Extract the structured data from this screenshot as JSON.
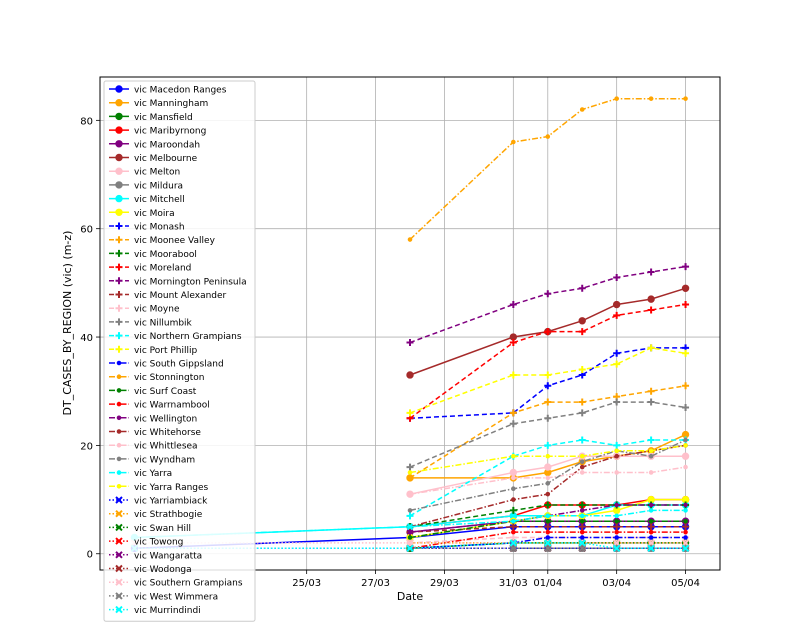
{
  "chart_data": {
    "type": "line",
    "title": "",
    "xlabel": "Date",
    "ylabel": "DT_CASES_BY_REGION (vic) (m-z)",
    "xlim": [
      "2020-03-19",
      "2020-04-06"
    ],
    "ylim": [
      -3,
      88
    ],
    "grid": true,
    "legend_position": "upper-left",
    "x_ticks": [
      {
        "date": "2020-03-25",
        "label": "25/03"
      },
      {
        "date": "2020-03-27",
        "label": "27/03"
      },
      {
        "date": "2020-03-29",
        "label": "29/03"
      },
      {
        "date": "2020-03-31",
        "label": "31/03"
      },
      {
        "date": "2020-04-01",
        "label": "01/04"
      },
      {
        "date": "2020-04-03",
        "label": "03/04"
      },
      {
        "date": "2020-04-05",
        "label": "05/04"
      }
    ],
    "y_ticks": [
      0,
      20,
      40,
      60,
      80
    ],
    "series": [
      {
        "name": "vic Macedon Ranges",
        "color": "#0000ff",
        "marker": "circle",
        "dash": "solid",
        "x": [
          "2020-03-20",
          "2020-03-28",
          "2020-03-31",
          "2020-04-01",
          "2020-04-02",
          "2020-04-03",
          "2020-04-04",
          "2020-04-05"
        ],
        "y": [
          1,
          3,
          5,
          5,
          5,
          5,
          5,
          5
        ]
      },
      {
        "name": "vic Manningham",
        "color": "#ffa500",
        "marker": "circle",
        "dash": "solid",
        "x": [
          "2020-03-28",
          "2020-03-31",
          "2020-04-01",
          "2020-04-02",
          "2020-04-03",
          "2020-04-04",
          "2020-04-05"
        ],
        "y": [
          14,
          14,
          15,
          17,
          18,
          19,
          22
        ]
      },
      {
        "name": "vic Mansfield",
        "color": "#008000",
        "marker": "circle",
        "dash": "solid",
        "x": [
          "2020-03-28",
          "2020-03-31",
          "2020-04-01",
          "2020-04-02",
          "2020-04-03",
          "2020-04-04",
          "2020-04-05"
        ],
        "y": [
          1,
          2,
          2,
          2,
          2,
          2,
          2
        ]
      },
      {
        "name": "vic Maribyrnong",
        "color": "#ff0000",
        "marker": "circle",
        "dash": "solid",
        "x": [
          "2020-03-28",
          "2020-03-31",
          "2020-04-01",
          "2020-04-02",
          "2020-04-03",
          "2020-04-04",
          "2020-04-05"
        ],
        "y": [
          5,
          7,
          9,
          9,
          9,
          10,
          10
        ]
      },
      {
        "name": "vic Maroondah",
        "color": "#800080",
        "marker": "circle",
        "dash": "solid",
        "x": [
          "2020-03-28",
          "2020-03-31",
          "2020-04-01",
          "2020-04-02",
          "2020-04-03",
          "2020-04-04",
          "2020-04-05"
        ],
        "y": [
          4,
          6,
          6,
          6,
          6,
          6,
          6
        ]
      },
      {
        "name": "vic Melbourne",
        "color": "#a52a2a",
        "marker": "circle",
        "dash": "solid",
        "x": [
          "2020-03-28",
          "2020-03-31",
          "2020-04-01",
          "2020-04-02",
          "2020-04-03",
          "2020-04-04",
          "2020-04-05"
        ],
        "y": [
          33,
          40,
          41,
          43,
          46,
          47,
          49
        ]
      },
      {
        "name": "vic Melton",
        "color": "#ffc0cb",
        "marker": "circle",
        "dash": "solid",
        "x": [
          "2020-03-28",
          "2020-03-31",
          "2020-04-01",
          "2020-04-02",
          "2020-04-03",
          "2020-04-04",
          "2020-04-05"
        ],
        "y": [
          11,
          15,
          16,
          18,
          18,
          18,
          18
        ]
      },
      {
        "name": "vic Mildura",
        "color": "#808080",
        "marker": "circle",
        "dash": "solid",
        "x": [
          "2020-03-31",
          "2020-04-01",
          "2020-04-02",
          "2020-04-03",
          "2020-04-04",
          "2020-04-05"
        ],
        "y": [
          1,
          1,
          1,
          1,
          1,
          1
        ]
      },
      {
        "name": "vic Mitchell",
        "color": "#00ffff",
        "marker": "circle",
        "dash": "solid",
        "x": [
          "2020-03-20",
          "2020-03-28",
          "2020-03-31",
          "2020-04-01",
          "2020-04-02",
          "2020-04-03",
          "2020-04-04",
          "2020-04-05"
        ],
        "y": [
          3,
          5,
          7,
          7,
          7,
          9,
          9,
          9
        ]
      },
      {
        "name": "vic Moira",
        "color": "#ffff00",
        "marker": "circle",
        "dash": "solid",
        "x": [
          "2020-03-28",
          "2020-03-31",
          "2020-04-01",
          "2020-04-02",
          "2020-04-03",
          "2020-04-04",
          "2020-04-05"
        ],
        "y": [
          3,
          6,
          7,
          7,
          8,
          10,
          10
        ]
      },
      {
        "name": "vic Monash",
        "color": "#0000ff",
        "marker": "plus",
        "dash": "dashed",
        "x": [
          "2020-03-28",
          "2020-03-31",
          "2020-04-01",
          "2020-04-02",
          "2020-04-03",
          "2020-04-04",
          "2020-04-05"
        ],
        "y": [
          25,
          26,
          31,
          33,
          37,
          38,
          38
        ]
      },
      {
        "name": "vic Moonee Valley",
        "color": "#ffa500",
        "marker": "plus",
        "dash": "dashed",
        "x": [
          "2020-03-28",
          "2020-03-31",
          "2020-04-01",
          "2020-04-02",
          "2020-04-03",
          "2020-04-04",
          "2020-04-05"
        ],
        "y": [
          14,
          26,
          28,
          28,
          29,
          30,
          31
        ]
      },
      {
        "name": "vic Moorabool",
        "color": "#008000",
        "marker": "plus",
        "dash": "dashed",
        "x": [
          "2020-03-28",
          "2020-03-31",
          "2020-04-01",
          "2020-04-02",
          "2020-04-03",
          "2020-04-04",
          "2020-04-05"
        ],
        "y": [
          5,
          8,
          9,
          9,
          9,
          9,
          9
        ]
      },
      {
        "name": "vic Moreland",
        "color": "#ff0000",
        "marker": "plus",
        "dash": "dashed",
        "x": [
          "2020-03-28",
          "2020-03-31",
          "2020-04-01",
          "2020-04-02",
          "2020-04-03",
          "2020-04-04",
          "2020-04-05"
        ],
        "y": [
          25,
          39,
          41,
          41,
          44,
          45,
          46
        ]
      },
      {
        "name": "vic Mornington Peninsula",
        "color": "#800080",
        "marker": "plus",
        "dash": "dashed",
        "x": [
          "2020-03-28",
          "2020-03-31",
          "2020-04-01",
          "2020-04-02",
          "2020-04-03",
          "2020-04-04",
          "2020-04-05"
        ],
        "y": [
          39,
          46,
          48,
          49,
          51,
          52,
          53
        ]
      },
      {
        "name": "vic Mount Alexander",
        "color": "#a52a2a",
        "marker": "plus",
        "dash": "dashed",
        "x": [
          "2020-03-28",
          "2020-03-31",
          "2020-04-01",
          "2020-04-02",
          "2020-04-03",
          "2020-04-04",
          "2020-04-05"
        ],
        "y": [
          4,
          5,
          5,
          5,
          5,
          5,
          5
        ]
      },
      {
        "name": "vic Moyne",
        "color": "#ffc0cb",
        "marker": "plus",
        "dash": "dashed",
        "x": [
          "2020-03-28",
          "2020-03-31",
          "2020-04-01",
          "2020-04-02",
          "2020-04-03",
          "2020-04-04",
          "2020-04-05"
        ],
        "y": [
          2,
          3,
          3,
          3,
          3,
          3,
          3
        ]
      },
      {
        "name": "vic Nillumbik",
        "color": "#808080",
        "marker": "plus",
        "dash": "dashed",
        "x": [
          "2020-03-28",
          "2020-03-31",
          "2020-04-01",
          "2020-04-02",
          "2020-04-03",
          "2020-04-04",
          "2020-04-05"
        ],
        "y": [
          16,
          24,
          25,
          26,
          28,
          28,
          27
        ]
      },
      {
        "name": "vic Northern Grampians",
        "color": "#00ffff",
        "marker": "plus",
        "dash": "dashed",
        "x": [
          "2020-03-28",
          "2020-03-31",
          "2020-04-01",
          "2020-04-02",
          "2020-04-03",
          "2020-04-04",
          "2020-04-05"
        ],
        "y": [
          7,
          18,
          20,
          21,
          20,
          21,
          21
        ]
      },
      {
        "name": "vic Port Phillip",
        "color": "#ffff00",
        "marker": "plus",
        "dash": "dashed",
        "x": [
          "2020-03-28",
          "2020-03-31",
          "2020-04-01",
          "2020-04-02",
          "2020-04-03",
          "2020-04-04",
          "2020-04-05"
        ],
        "y": [
          26,
          33,
          33,
          34,
          35,
          38,
          37
        ]
      },
      {
        "name": "vic South Gippsland",
        "color": "#0000ff",
        "marker": "dot",
        "dash": "dashdot",
        "x": [
          "2020-03-28",
          "2020-03-31",
          "2020-04-01",
          "2020-04-02",
          "2020-04-03",
          "2020-04-04",
          "2020-04-05"
        ],
        "y": [
          1,
          2,
          3,
          3,
          3,
          3,
          3
        ]
      },
      {
        "name": "vic Stonnington",
        "color": "#ffa500",
        "marker": "dot",
        "dash": "dashdot",
        "x": [
          "2020-03-28",
          "2020-03-31",
          "2020-04-01",
          "2020-04-02",
          "2020-04-03",
          "2020-04-04",
          "2020-04-05"
        ],
        "y": [
          58,
          76,
          77,
          82,
          84,
          84,
          84
        ]
      },
      {
        "name": "vic Surf Coast",
        "color": "#008000",
        "marker": "dot",
        "dash": "dashdot",
        "x": [
          "2020-03-28",
          "2020-03-31",
          "2020-04-01",
          "2020-04-02",
          "2020-04-03",
          "2020-04-04",
          "2020-04-05"
        ],
        "y": [
          3,
          6,
          6,
          6,
          6,
          6,
          6
        ]
      },
      {
        "name": "vic Warrnambool",
        "color": "#ff0000",
        "marker": "dot",
        "dash": "dashdot",
        "x": [
          "2020-03-28",
          "2020-03-31",
          "2020-04-01",
          "2020-04-02",
          "2020-04-03",
          "2020-04-04",
          "2020-04-05"
        ],
        "y": [
          1,
          4,
          4,
          4,
          4,
          4,
          4
        ]
      },
      {
        "name": "vic Wellington",
        "color": "#800080",
        "marker": "dot",
        "dash": "dashdot",
        "x": [
          "2020-03-28",
          "2020-03-31",
          "2020-04-01",
          "2020-04-02",
          "2020-04-03",
          "2020-04-04",
          "2020-04-05"
        ],
        "y": [
          4,
          6,
          7,
          8,
          9,
          9,
          9
        ]
      },
      {
        "name": "vic Whitehorse",
        "color": "#a52a2a",
        "marker": "dot",
        "dash": "dashdot",
        "x": [
          "2020-03-28",
          "2020-03-31",
          "2020-04-01",
          "2020-04-02",
          "2020-04-03",
          "2020-04-04",
          "2020-04-05"
        ],
        "y": [
          5,
          10,
          11,
          16,
          18,
          19,
          20
        ]
      },
      {
        "name": "vic Whittlesea",
        "color": "#ffc0cb",
        "marker": "dot",
        "dash": "dashdot",
        "x": [
          "2020-03-28",
          "2020-03-31",
          "2020-04-01",
          "2020-04-02",
          "2020-04-03",
          "2020-04-04",
          "2020-04-05"
        ],
        "y": [
          11,
          14,
          14,
          15,
          15,
          15,
          16
        ]
      },
      {
        "name": "vic Wyndham",
        "color": "#808080",
        "marker": "dot",
        "dash": "dashdot",
        "x": [
          "2020-03-28",
          "2020-03-31",
          "2020-04-01",
          "2020-04-02",
          "2020-04-03",
          "2020-04-04",
          "2020-04-05"
        ],
        "y": [
          8,
          12,
          13,
          17,
          19,
          18,
          21
        ]
      },
      {
        "name": "vic Yarra",
        "color": "#00ffff",
        "marker": "dot",
        "dash": "dashdot",
        "x": [
          "2020-03-20",
          "2020-03-28",
          "2020-03-31",
          "2020-04-01",
          "2020-04-02",
          "2020-04-03",
          "2020-04-04",
          "2020-04-05"
        ],
        "y": [
          3,
          5,
          6,
          7,
          7,
          7,
          8,
          8
        ]
      },
      {
        "name": "vic Yarra Ranges",
        "color": "#ffff00",
        "marker": "dot",
        "dash": "dashdot",
        "x": [
          "2020-03-28",
          "2020-03-31",
          "2020-04-01",
          "2020-04-02",
          "2020-04-03",
          "2020-04-04",
          "2020-04-05"
        ],
        "y": [
          15,
          18,
          18,
          18,
          19,
          19,
          20
        ]
      },
      {
        "name": "vic Yarriambiack",
        "color": "#0000ff",
        "marker": "x",
        "dash": "dotted",
        "x": [
          "2020-03-20",
          "2020-03-28",
          "2020-03-31",
          "2020-04-01",
          "2020-04-02",
          "2020-04-03",
          "2020-04-04",
          "2020-04-05"
        ],
        "y": [
          1,
          1,
          1,
          1,
          1,
          1,
          1,
          1
        ]
      },
      {
        "name": "vic Strathbogie",
        "color": "#ffa500",
        "marker": "x",
        "dash": "dotted",
        "x": [
          "2020-03-28",
          "2020-03-31",
          "2020-04-01",
          "2020-04-02",
          "2020-04-03",
          "2020-04-04",
          "2020-04-05"
        ],
        "y": [
          2,
          2,
          2,
          2,
          2,
          2,
          2
        ]
      },
      {
        "name": "vic Swan Hill",
        "color": "#008000",
        "marker": "x",
        "dash": "dotted",
        "x": [
          "2020-03-28",
          "2020-03-31",
          "2020-04-01",
          "2020-04-02",
          "2020-04-03",
          "2020-04-04",
          "2020-04-05"
        ],
        "y": [
          1,
          1,
          1,
          1,
          1,
          1,
          1
        ]
      },
      {
        "name": "vic Towong",
        "color": "#ff0000",
        "marker": "x",
        "dash": "dotted",
        "x": [
          "2020-03-28",
          "2020-03-31",
          "2020-04-01",
          "2020-04-02",
          "2020-04-03",
          "2020-04-04",
          "2020-04-05"
        ],
        "y": [
          1,
          1,
          1,
          1,
          1,
          1,
          1
        ]
      },
      {
        "name": "vic Wangaratta",
        "color": "#800080",
        "marker": "x",
        "dash": "dotted",
        "x": [
          "2020-03-28",
          "2020-03-31",
          "2020-04-01",
          "2020-04-02",
          "2020-04-03",
          "2020-04-04",
          "2020-04-05"
        ],
        "y": [
          1,
          1,
          1,
          1,
          1,
          1,
          1
        ]
      },
      {
        "name": "vic Wodonga",
        "color": "#a52a2a",
        "marker": "x",
        "dash": "dotted",
        "x": [
          "2020-03-28",
          "2020-03-31",
          "2020-04-01",
          "2020-04-02",
          "2020-04-03",
          "2020-04-04",
          "2020-04-05"
        ],
        "y": [
          1,
          1,
          1,
          1,
          1,
          1,
          1
        ]
      },
      {
        "name": "vic Southern Grampians",
        "color": "#ffc0cb",
        "marker": "x",
        "dash": "dotted",
        "x": [
          "2020-03-20",
          "2020-03-28",
          "2020-03-31",
          "2020-04-01",
          "2020-04-02",
          "2020-04-03",
          "2020-04-04",
          "2020-04-05"
        ],
        "y": [
          2,
          2,
          2,
          2,
          2,
          2,
          2,
          2
        ]
      },
      {
        "name": "vic West Wimmera",
        "color": "#808080",
        "marker": "x",
        "dash": "dotted",
        "x": [
          "2020-03-28",
          "2020-03-31",
          "2020-04-01",
          "2020-04-02",
          "2020-04-03",
          "2020-04-04",
          "2020-04-05"
        ],
        "y": [
          1,
          1,
          1,
          1,
          1,
          1,
          1
        ]
      },
      {
        "name": "vic Murrindindi",
        "color": "#00ffff",
        "marker": "x",
        "dash": "dotted",
        "x": [
          "2020-03-20",
          "2020-03-28",
          "2020-03-31",
          "2020-04-01",
          "2020-04-02",
          "2020-04-03",
          "2020-04-04",
          "2020-04-05"
        ],
        "y": [
          1,
          1,
          2,
          2,
          2,
          1,
          1,
          1
        ]
      }
    ]
  }
}
